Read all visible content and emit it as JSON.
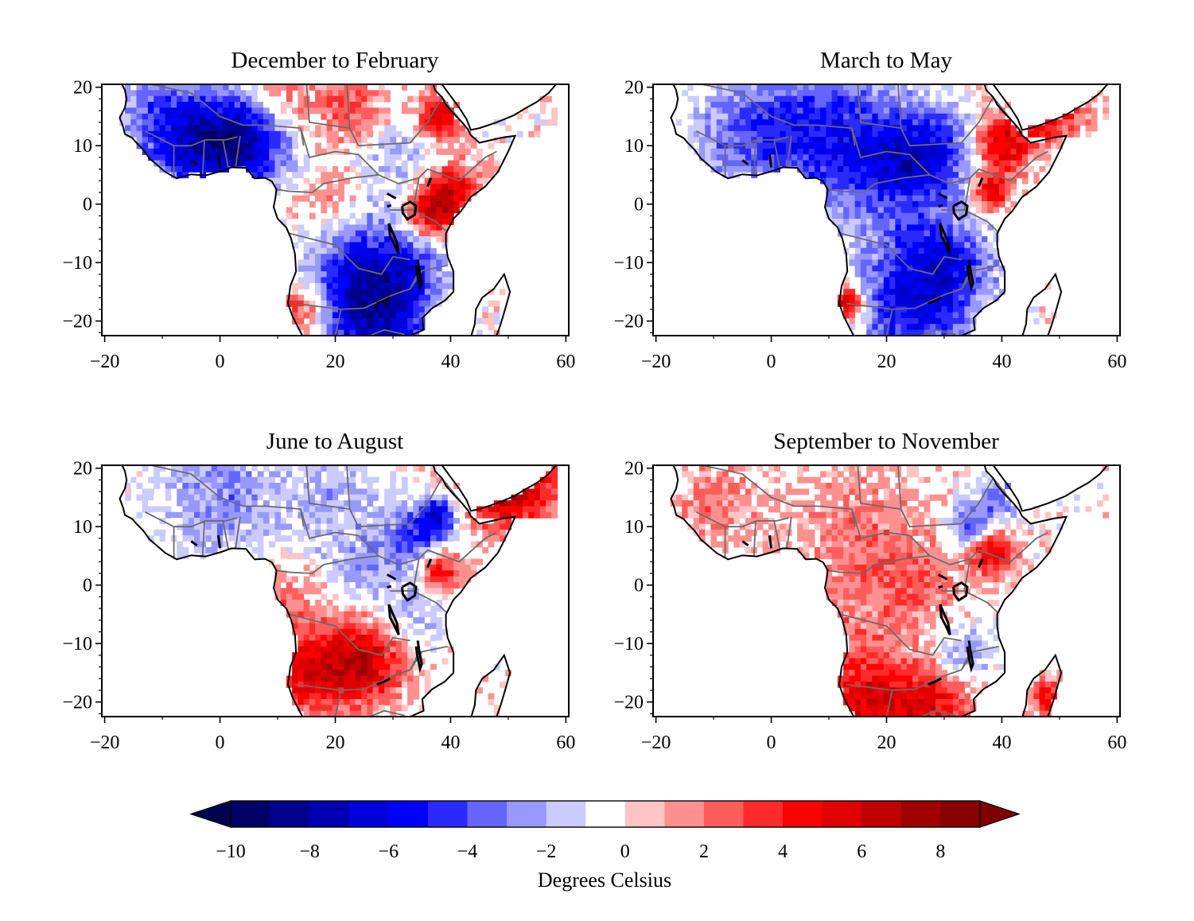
{
  "panels": [
    {
      "title": "December to February"
    },
    {
      "title": "March to May"
    },
    {
      "title": "June to August"
    },
    {
      "title": "September to November"
    }
  ],
  "axes": {
    "x_ticks": [
      "−20",
      "0",
      "20",
      "40",
      "60"
    ],
    "y_ticks": [
      "20",
      "10",
      "0",
      "−10",
      "−20"
    ],
    "xlim": [
      -20.5,
      60.5
    ],
    "ylim": [
      -22.5,
      20.5
    ]
  },
  "colorbar": {
    "label": "Degrees Celsius",
    "ticks": [
      "−10",
      "−8",
      "−6",
      "−4",
      "−2",
      "0",
      "2",
      "4",
      "6",
      "8"
    ],
    "levels": [
      -10,
      -9,
      -8,
      -7,
      -6,
      -5,
      -4,
      -3,
      -2,
      -1,
      0,
      1,
      2,
      3,
      4,
      5,
      6,
      7,
      8,
      9
    ],
    "colors": [
      "#000066",
      "#00008b",
      "#0000b3",
      "#0000d9",
      "#0000ff",
      "#2a2aff",
      "#6464ff",
      "#9898ff",
      "#cbcbff",
      "#ffffff",
      "#ffc4c4",
      "#ff9090",
      "#ff5c5c",
      "#ff2b2b",
      "#ff0000",
      "#e00000",
      "#c00000",
      "#a00000",
      "#880000"
    ],
    "under_color": "#000050",
    "over_color": "#800000"
  },
  "chart_data": [
    {
      "type": "heatmap",
      "title": "December to February",
      "xlim": [
        -20,
        60
      ],
      "ylim": [
        -22,
        20
      ],
      "colorbar_label": "Degrees Celsius",
      "vmin": -10,
      "vmax": 9
    },
    {
      "type": "heatmap",
      "title": "March to May",
      "xlim": [
        -20,
        60
      ],
      "ylim": [
        -22,
        20
      ],
      "colorbar_label": "Degrees Celsius",
      "vmin": -10,
      "vmax": 9
    },
    {
      "type": "heatmap",
      "title": "June to August",
      "xlim": [
        -20,
        60
      ],
      "ylim": [
        -22,
        20
      ],
      "colorbar_label": "Degrees Celsius",
      "vmin": -10,
      "vmax": 9
    },
    {
      "type": "heatmap",
      "title": "September to November",
      "xlim": [
        -20,
        60
      ],
      "ylim": [
        -22,
        20
      ],
      "colorbar_label": "Degrees Celsius",
      "vmin": -10,
      "vmax": 9
    }
  ]
}
